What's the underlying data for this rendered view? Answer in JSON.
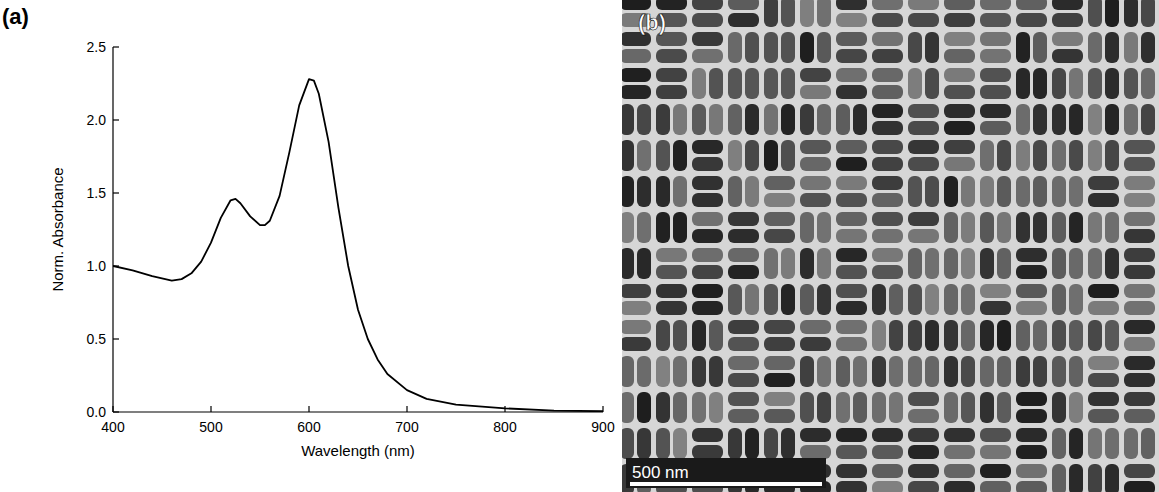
{
  "chart_data": {
    "type": "line",
    "label": "(a)",
    "x_label": "Wavelength (nm)",
    "y_label": "Norm. Absorbance",
    "x": [
      400,
      420,
      440,
      460,
      470,
      480,
      490,
      500,
      510,
      520,
      525,
      530,
      540,
      550,
      555,
      560,
      570,
      580,
      590,
      600,
      605,
      610,
      620,
      630,
      640,
      650,
      660,
      670,
      680,
      700,
      720,
      750,
      800,
      850,
      900
    ],
    "values": [
      1.0,
      0.97,
      0.93,
      0.9,
      0.91,
      0.95,
      1.03,
      1.16,
      1.33,
      1.45,
      1.46,
      1.43,
      1.34,
      1.28,
      1.28,
      1.31,
      1.48,
      1.78,
      2.1,
      2.28,
      2.27,
      2.18,
      1.85,
      1.4,
      1.0,
      0.7,
      0.5,
      0.36,
      0.26,
      0.15,
      0.09,
      0.05,
      0.025,
      0.01,
      0.005
    ],
    "color": "#000000",
    "xlim": [
      400,
      900
    ],
    "xticks": [
      400,
      500,
      600,
      700,
      800,
      900
    ],
    "ylim": [
      0,
      2.5
    ],
    "yticks": [
      {
        "value": 0,
        "label": "0.0"
      },
      0.5,
      {
        "value": 1,
        "label": "1.0"
      },
      1.5,
      {
        "value": 2,
        "label": "2.0"
      },
      2.5
    ],
    "grid": false
  },
  "micrograph": {
    "label": "(b)",
    "scale_bar": "500 nm"
  }
}
